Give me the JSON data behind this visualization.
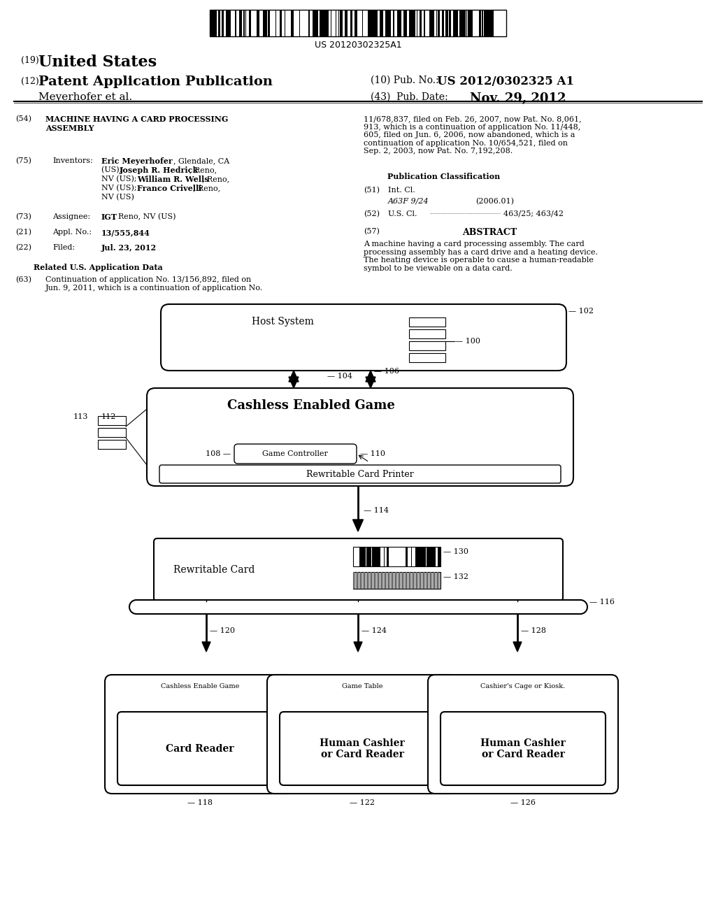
{
  "bg_color": "#ffffff",
  "title_text": "US 20120302325A1",
  "header_19_bold": "United States",
  "header_12_bold": "Patent Application Publication",
  "header_10_val": "US 2012/0302325 A1",
  "header_43_val": "Nov. 29, 2012",
  "applicant": "Meyerhofer et al.",
  "field54_title": "MACHINE HAVING A CARD PROCESSING\nASSEMBLY",
  "field75_val": "Eric Meyerhofer, Glendale, CA\n(US); Joseph R. Hedrick, Reno,\nNV (US); William R. Wells, Reno,\nNV (US); Franco Crivelli, Reno,\nNV (US)",
  "field73_val": "IGT, Reno, NV (US)",
  "field21_val": "13/555,844",
  "field22_val": "Jul. 23, 2012",
  "related_title": "Related U.S. Application Data",
  "field63_val": "Continuation of application No. 13/156,892, filed on\nJun. 9, 2011, which is a continuation of application No.",
  "right_para": "11/678,837, filed on Feb. 26, 2007, now Pat. No. 8,061,\n913, which is a continuation of application No. 11/448,\n605, filed on Jun. 6, 2006, now abandoned, which is a\ncontinuation of application No. 10/654,521, filed on\nSep. 2, 2003, now Pat. No. 7,192,208.",
  "pub_class_title": "Publication Classification",
  "field51_class": "A63F 9/24",
  "field51_year": "(2006.01)",
  "field52_val": "463/25; 463/42",
  "field57_val": "A machine having a card processing assembly. The card\nprocessing assembly has a card drive and a heating device.\nThe heating device is operable to cause a human-readable\nsymbol to be viewable on a data card.",
  "cashless_label": "Cashless Enabled Game",
  "rewritable_printer_label": "Rewritable Card Printer",
  "rewritable_card_label": "Rewritable Card",
  "box1_label": "Cashless Enable Game",
  "box1_sub": "Card Reader",
  "box2_label": "Game Table",
  "box2_sub": "Human Cashier\nor Card Reader",
  "box3_label": "Cashier's Cage or Kiosk.",
  "box3_sub": "Human Cashier\nor Card Reader"
}
